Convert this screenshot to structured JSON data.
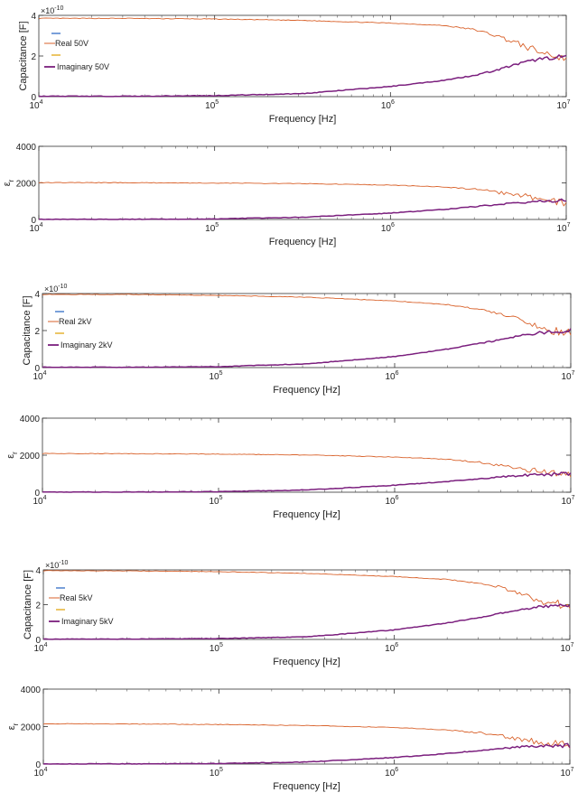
{
  "chart_data": [
    {
      "type": "line",
      "kind": "capacitance",
      "xscale": "log",
      "xlim": [
        10000,
        10000000
      ],
      "ylim": [
        0,
        4
      ],
      "yticks": [
        "0",
        "2",
        "4"
      ],
      "exponent_label": "×10",
      "exponent_value": "-10",
      "xlabel": "Frequency [Hz]",
      "ylabel": "Capacitance [F]",
      "legend": {
        "placement": "upper-left",
        "entries": [
          "Real 50V",
          "Imaginary 50V"
        ]
      },
      "series": [
        {
          "name": "Real 50V",
          "color": "#d9622b",
          "x": [
            10000,
            31600,
            100000,
            316000,
            1000000,
            2000000,
            3000000,
            4000000,
            5000000,
            7000000,
            10000000
          ],
          "values": [
            3.85,
            3.85,
            3.82,
            3.75,
            3.62,
            3.5,
            3.3,
            3.0,
            2.7,
            2.2,
            1.9
          ]
        },
        {
          "name": "Imaginary 50V",
          "color": "#7b1f7e",
          "x": [
            10000,
            31600,
            100000,
            316000,
            1000000,
            2000000,
            3000000,
            4000000,
            5000000,
            7000000,
            10000000
          ],
          "values": [
            0.02,
            0.02,
            0.05,
            0.15,
            0.5,
            0.8,
            1.05,
            1.3,
            1.55,
            1.85,
            2.0
          ]
        }
      ]
    },
    {
      "type": "line",
      "kind": "permittivity",
      "xscale": "log",
      "xlim": [
        10000,
        10000000
      ],
      "ylim": [
        0,
        4000
      ],
      "yticks": [
        "0",
        "2000",
        "4000"
      ],
      "xlabel": "Frequency [Hz]",
      "ylabel_main": "ε",
      "ylabel_sub": "r",
      "series": [
        {
          "color": "#d9622b",
          "x": [
            10000,
            31600,
            100000,
            316000,
            1000000,
            2000000,
            3000000,
            4000000,
            5000000,
            7000000,
            10000000
          ],
          "values": [
            2020,
            2010,
            1990,
            1960,
            1880,
            1780,
            1650,
            1500,
            1350,
            1150,
            950
          ]
        },
        {
          "color": "#7b1f7e",
          "x": [
            10000,
            31600,
            100000,
            316000,
            1000000,
            2000000,
            3000000,
            4000000,
            5000000,
            7000000,
            10000000
          ],
          "values": [
            5,
            10,
            30,
            120,
            350,
            550,
            700,
            820,
            900,
            980,
            1050
          ]
        }
      ]
    },
    {
      "type": "line",
      "kind": "capacitance",
      "xscale": "log",
      "xlim": [
        10000,
        10000000
      ],
      "ylim": [
        0,
        4
      ],
      "yticks": [
        "0",
        "2",
        "4"
      ],
      "exponent_label": "×10",
      "exponent_value": "-10",
      "xlabel": "Frequency [Hz]",
      "ylabel": "Capacitance [F]",
      "legend": {
        "placement": "upper-left",
        "entries": [
          "Real 2kV",
          "Imaginary 2kV"
        ]
      },
      "series": [
        {
          "name": "Real 2kV",
          "color": "#d9622b",
          "x": [
            10000,
            31600,
            100000,
            316000,
            1000000,
            2000000,
            3000000,
            4000000,
            5000000,
            7000000,
            10000000
          ],
          "values": [
            3.95,
            3.95,
            3.9,
            3.8,
            3.6,
            3.4,
            3.15,
            2.9,
            2.6,
            2.1,
            1.8
          ]
        },
        {
          "name": "Imaginary 2kV",
          "color": "#7b1f7e",
          "x": [
            10000,
            31600,
            100000,
            316000,
            1000000,
            2000000,
            3000000,
            4000000,
            5000000,
            7000000,
            10000000
          ],
          "values": [
            0.02,
            0.02,
            0.05,
            0.2,
            0.6,
            1.0,
            1.3,
            1.5,
            1.7,
            1.9,
            2.0
          ]
        }
      ]
    },
    {
      "type": "line",
      "kind": "permittivity",
      "xscale": "log",
      "xlim": [
        10000,
        10000000
      ],
      "ylim": [
        0,
        4000
      ],
      "yticks": [
        "0",
        "2000",
        "4000"
      ],
      "xlabel": "Frequency [Hz]",
      "ylabel_main": "ε",
      "ylabel_sub": "r",
      "series": [
        {
          "color": "#d9622b",
          "x": [
            10000,
            31600,
            100000,
            316000,
            1000000,
            2000000,
            3000000,
            4000000,
            5000000,
            7000000,
            10000000
          ],
          "values": [
            2090,
            2080,
            2060,
            2010,
            1900,
            1780,
            1620,
            1450,
            1300,
            1080,
            900
          ]
        },
        {
          "color": "#7b1f7e",
          "x": [
            10000,
            31600,
            100000,
            316000,
            1000000,
            2000000,
            3000000,
            4000000,
            5000000,
            7000000,
            10000000
          ],
          "values": [
            5,
            10,
            30,
            120,
            380,
            580,
            720,
            830,
            900,
            960,
            1000
          ]
        }
      ]
    },
    {
      "type": "line",
      "kind": "capacitance",
      "xscale": "log",
      "xlim": [
        10000,
        10000000
      ],
      "ylim": [
        0,
        4
      ],
      "yticks": [
        "0",
        "2",
        "4"
      ],
      "exponent_label": "×10",
      "exponent_value": "-10",
      "xlabel": "Frequency [Hz]",
      "ylabel": "Capacitance [F]",
      "legend": {
        "placement": "upper-left",
        "entries": [
          "Real 5kV",
          "Imaginary 5kV"
        ]
      },
      "series": [
        {
          "name": "Real 5kV",
          "color": "#d9622b",
          "x": [
            10000,
            31600,
            100000,
            316000,
            1000000,
            2000000,
            3000000,
            4000000,
            5000000,
            7000000,
            10000000
          ],
          "values": [
            3.95,
            3.95,
            3.9,
            3.8,
            3.62,
            3.45,
            3.25,
            3.0,
            2.7,
            2.2,
            1.9
          ]
        },
        {
          "name": "Imaginary 5kV",
          "color": "#7b1f7e",
          "x": [
            10000,
            31600,
            100000,
            316000,
            1000000,
            2000000,
            3000000,
            4000000,
            5000000,
            7000000,
            10000000
          ],
          "values": [
            0.02,
            0.02,
            0.05,
            0.15,
            0.55,
            0.95,
            1.25,
            1.5,
            1.7,
            1.9,
            2.0
          ]
        }
      ]
    },
    {
      "type": "line",
      "kind": "permittivity",
      "xscale": "log",
      "xlim": [
        10000,
        10000000
      ],
      "ylim": [
        0,
        4000
      ],
      "yticks": [
        "0",
        "2000",
        "4000"
      ],
      "xlabel": "Frequency [Hz]",
      "ylabel_main": "ε",
      "ylabel_sub": "r",
      "series": [
        {
          "color": "#d9622b",
          "x": [
            10000,
            31600,
            100000,
            316000,
            1000000,
            2000000,
            3000000,
            4000000,
            5000000,
            7000000,
            10000000
          ],
          "values": [
            2150,
            2140,
            2110,
            2060,
            1950,
            1820,
            1680,
            1500,
            1350,
            1150,
            1000
          ]
        },
        {
          "color": "#7b1f7e",
          "x": [
            10000,
            31600,
            100000,
            316000,
            1000000,
            2000000,
            3000000,
            4000000,
            5000000,
            7000000,
            10000000
          ],
          "values": [
            5,
            10,
            30,
            110,
            350,
            560,
            720,
            820,
            900,
            960,
            1000
          ]
        }
      ]
    }
  ]
}
